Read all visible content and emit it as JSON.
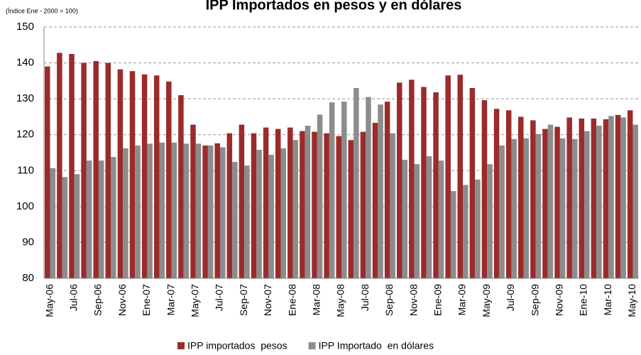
{
  "chart_data": {
    "type": "bar",
    "title": "IPP Importados  en pesos y en dólares",
    "subtitle": "(Índice Ene - 2000 = 100)",
    "categories": [
      "May-06",
      null,
      "Jul-06",
      null,
      "Sep-06",
      null,
      "Nov-06",
      null,
      "Ene-07",
      null,
      "Mar-07",
      null,
      "May-07",
      null,
      "Jul-07",
      null,
      "Sep-07",
      null,
      "Nov-07",
      null,
      "Ene-08",
      null,
      "Mar-08",
      null,
      "May-08",
      null,
      "Jul-08",
      null,
      "Sep-08",
      null,
      "Nov-08",
      null,
      "Ene-09",
      null,
      "Mar-09",
      null,
      "May-09",
      null,
      "Jul-09",
      null,
      "Sep-09",
      null,
      "Nov-09",
      null,
      "Ene-10",
      null,
      "Mar-10",
      null,
      "May-10"
    ],
    "series": [
      {
        "name": "IPP importados  pesos",
        "color": "#9b2b2b",
        "values": [
          139,
          142.8,
          142.5,
          140,
          140.5,
          140,
          138.2,
          137.7,
          136.8,
          136.5,
          134.8,
          131,
          122.8,
          117,
          117.6,
          120.4,
          122.8,
          120.4,
          122,
          121.6,
          122,
          121,
          120.8,
          120.4,
          119.6,
          118.5,
          120.8,
          123.3,
          129.2,
          134.5,
          135.3,
          133.3,
          131.8,
          136.5,
          136.7,
          133,
          129.6,
          127.2,
          126.8,
          125,
          124,
          121.6,
          122.2,
          124.8,
          124.5,
          124.5,
          124.3,
          125.5,
          126.8
        ]
      },
      {
        "name": "IPP Importado  en dólares",
        "color": "#8c8c8c",
        "values": [
          110.7,
          108.2,
          109,
          112.8,
          112.8,
          113.8,
          116.2,
          117,
          117.5,
          117.8,
          117.8,
          117.5,
          117.5,
          117,
          116.5,
          112.4,
          111.4,
          115.8,
          114.4,
          116.2,
          118.5,
          122.5,
          125.6,
          129,
          129.2,
          133,
          130.5,
          128.4,
          120.4,
          113,
          111.8,
          114,
          112.8,
          104.3,
          106,
          107.5,
          111.8,
          117,
          118.8,
          119,
          120.2,
          122.8,
          119,
          118.8,
          121,
          122.5,
          125.2,
          124.8,
          122.8
        ]
      }
    ],
    "ylim": [
      80,
      150
    ],
    "yticks": [
      80,
      90,
      100,
      110,
      120,
      130,
      140,
      150
    ],
    "grid": true
  }
}
